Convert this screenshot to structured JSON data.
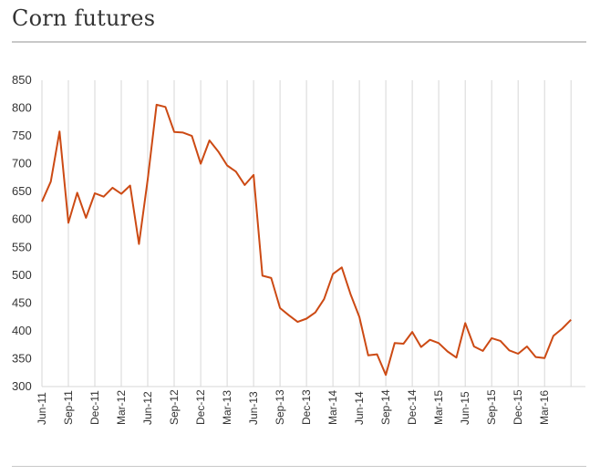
{
  "header": {
    "title": "Corn futures"
  },
  "chart_data": {
    "type": "line",
    "title": "Corn futures",
    "xlabel": "",
    "ylabel": "",
    "ylim": [
      300,
      850
    ],
    "yticks": [
      300,
      350,
      400,
      450,
      500,
      550,
      600,
      650,
      700,
      750,
      800,
      850
    ],
    "grid": "vertical",
    "x_tick_labels": [
      "Jun-11",
      "Sep-11",
      "Dec-11",
      "Mar-12",
      "Jun-12",
      "Sep-12",
      "Dec-12",
      "Mar-13",
      "Jun-13",
      "Sep-13",
      "Dec-13",
      "Mar-14",
      "Jun-14",
      "Sep-14",
      "Dec-14",
      "Mar-15",
      "Jun-15",
      "Sep-15",
      "Dec-15",
      "Mar-16"
    ],
    "series": [
      {
        "color": "#cc4a14",
        "x": [
          "Jun-11",
          "Jul-11",
          "Aug-11",
          "Sep-11",
          "Oct-11",
          "Nov-11",
          "Dec-11",
          "Jan-12",
          "Feb-12",
          "Mar-12",
          "Apr-12",
          "May-12",
          "Jun-12",
          "Jul-12",
          "Aug-12",
          "Sep-12",
          "Oct-12",
          "Nov-12",
          "Dec-12",
          "Jan-13",
          "Feb-13",
          "Mar-13",
          "Apr-13",
          "May-13",
          "Jun-13",
          "Jul-13",
          "Aug-13",
          "Sep-13",
          "Oct-13",
          "Nov-13",
          "Dec-13",
          "Jan-14",
          "Feb-14",
          "Mar-14",
          "Apr-14",
          "May-14",
          "Jun-14",
          "Jul-14",
          "Aug-14",
          "Sep-14",
          "Oct-14",
          "Nov-14",
          "Dec-14",
          "Jan-15",
          "Feb-15",
          "Mar-15",
          "Apr-15",
          "May-15",
          "Jun-15",
          "Jul-15",
          "Aug-15",
          "Sep-15",
          "Oct-15",
          "Nov-15",
          "Dec-15",
          "Jan-16",
          "Feb-16",
          "Mar-16",
          "Apr-16",
          "May-16",
          "Jun-16"
        ],
        "values": [
          632,
          668,
          758,
          594,
          648,
          603,
          647,
          641,
          657,
          646,
          661,
          556,
          672,
          806,
          802,
          757,
          756,
          750,
          700,
          742,
          722,
          697,
          686,
          662,
          680,
          499,
          495,
          441,
          428,
          416,
          422,
          433,
          457,
          502,
          514,
          466,
          425,
          356,
          358,
          321,
          378,
          377,
          398,
          371,
          384,
          378,
          363,
          352,
          414,
          372,
          364,
          387,
          382,
          365,
          359,
          372,
          353,
          351,
          391,
          404,
          420
        ]
      }
    ]
  }
}
